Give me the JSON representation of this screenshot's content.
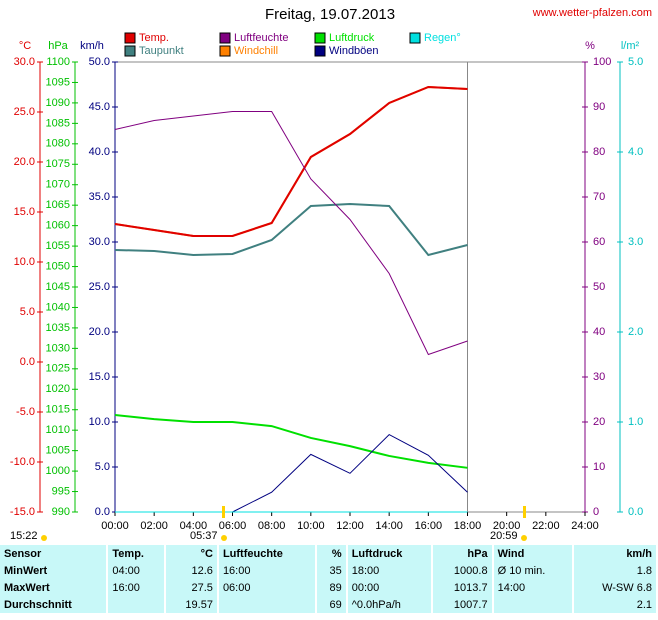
{
  "chart_data": {
    "type": "line",
    "title": "Freitag, 19.07.2013",
    "source": "www.wetter-pfalzen.com",
    "x": [
      0,
      2,
      4,
      6,
      8,
      10,
      12,
      14,
      16,
      18
    ],
    "xlim": [
      0,
      24
    ],
    "xticks": [
      {
        "value": 0,
        "label": "00:00"
      },
      {
        "value": 2,
        "label": "02:00"
      },
      {
        "value": 4,
        "label": "04:00"
      },
      {
        "value": 6,
        "label": "06:00"
      },
      {
        "value": 8,
        "label": "08:00"
      },
      {
        "value": 10,
        "label": "10:00"
      },
      {
        "value": 12,
        "label": "12:00"
      },
      {
        "value": 14,
        "label": "14:00"
      },
      {
        "value": 16,
        "label": "16:00"
      },
      {
        "value": 18,
        "label": "18:00"
      },
      {
        "value": 20,
        "label": "20:00"
      },
      {
        "value": 22,
        "label": "22:00"
      },
      {
        "value": 24,
        "label": "24:00"
      }
    ],
    "axes": {
      "c": {
        "label": "°C",
        "color": "#e00000",
        "lim": [
          -15,
          30
        ],
        "ticks": [
          {
            "value": 30,
            "label": "30.0"
          },
          {
            "value": 25,
            "label": "25.0"
          },
          {
            "value": 20,
            "label": "20.0"
          },
          {
            "value": 15,
            "label": "15.0"
          },
          {
            "value": 10,
            "label": "10.0"
          },
          {
            "value": 5,
            "label": "5.0"
          },
          {
            "value": 0,
            "label": "0.0"
          },
          {
            "value": -5,
            "label": "-5.0"
          },
          {
            "value": -10,
            "label": "-10.0"
          },
          {
            "value": -15,
            "label": "-15.0"
          }
        ]
      },
      "hpa": {
        "label": "hPa",
        "color": "#00c000",
        "lim": [
          990,
          1100
        ],
        "ticks": [
          1100,
          1095,
          1090,
          1085,
          1080,
          1075,
          1070,
          1065,
          1060,
          1055,
          1050,
          1045,
          1040,
          1035,
          1030,
          1025,
          1020,
          1015,
          1010,
          1005,
          1000,
          995,
          990
        ]
      },
      "kmh": {
        "label": "km/h",
        "color": "#000080",
        "lim": [
          0,
          50
        ],
        "ticks": [
          {
            "value": 50,
            "label": "50.0"
          },
          {
            "value": 45,
            "label": "45.0"
          },
          {
            "value": 40,
            "label": "40.0"
          },
          {
            "value": 35,
            "label": "35.0"
          },
          {
            "value": 30,
            "label": "30.0"
          },
          {
            "value": 25,
            "label": "25.0"
          },
          {
            "value": 20,
            "label": "20.0"
          },
          {
            "value": 15,
            "label": "15.0"
          },
          {
            "value": 10,
            "label": "10.0"
          },
          {
            "value": 5,
            "label": "5.0"
          },
          {
            "value": 0,
            "label": "0.0"
          }
        ]
      },
      "pct": {
        "label": "%",
        "color": "#800080",
        "lim": [
          0,
          100
        ],
        "ticks": [
          100,
          90,
          80,
          70,
          60,
          50,
          40,
          30,
          20,
          10,
          0
        ]
      },
      "rain": {
        "label": "l/m²",
        "color": "#00c0c0",
        "lim": [
          0,
          5
        ],
        "ticks": [
          {
            "value": 5,
            "label": "5.0"
          },
          {
            "value": 4,
            "label": "4.0"
          },
          {
            "value": 3,
            "label": "3.0"
          },
          {
            "value": 2,
            "label": "2.0"
          },
          {
            "value": 1,
            "label": "1.0"
          },
          {
            "value": 0,
            "label": "0.0"
          }
        ]
      }
    },
    "series": [
      {
        "name": "Windchill",
        "color": "#ff8000",
        "axis": "c",
        "values": [
          13.8,
          13.2,
          12.6,
          12.6,
          13.9,
          20.5,
          22.8,
          25.9,
          27.5,
          27.3
        ]
      },
      {
        "name": "Temp.",
        "color": "#e00000",
        "axis": "c",
        "values": [
          13.8,
          13.2,
          12.6,
          12.6,
          13.9,
          20.5,
          22.8,
          25.9,
          27.5,
          27.3
        ]
      },
      {
        "name": "Taupunkt",
        "color": "#408080",
        "axis": "c",
        "values": [
          11.2,
          11.1,
          10.7,
          10.8,
          12.2,
          15.6,
          15.8,
          15.6,
          10.7,
          11.7
        ]
      },
      {
        "name": "Luftfeuchte",
        "color": "#800080",
        "axis": "pct",
        "values": [
          85,
          87,
          88,
          89,
          89,
          74,
          65,
          53,
          35,
          38
        ]
      },
      {
        "name": "Luftdruck",
        "color": "#00e000",
        "axis": "hpa",
        "values": [
          1013.7,
          1012.7,
          1012,
          1012,
          1011,
          1008.1,
          1006.1,
          1003.7,
          1002,
          1000.8
        ]
      },
      {
        "name": "Windböen",
        "color": "#000080",
        "axis": "kmh",
        "values": [
          null,
          null,
          null,
          0,
          2.2,
          6.4,
          4.3,
          8.6,
          6.3,
          2.2
        ]
      },
      {
        "name": "Regen°",
        "color": "#00e0e0",
        "axis": "rain",
        "values": [
          0,
          0,
          0,
          0,
          0,
          0,
          0,
          0,
          0,
          0
        ]
      }
    ],
    "sun_labels": [
      "15:22",
      "05:37",
      "20:59"
    ]
  },
  "table": {
    "header": [
      "Sensor",
      "Temp.",
      "°C",
      "Luftfeuchte",
      "%",
      "Luftdruck",
      "hPa",
      "Wind",
      "km/h"
    ],
    "rows": [
      [
        "MinWert",
        "04:00",
        "12.6",
        "16:00",
        "35",
        "18:00",
        "1000.8",
        "Ø 10 min.",
        "1.8"
      ],
      [
        "MaxWert",
        "16:00",
        "27.5",
        "06:00",
        "89",
        "00:00",
        "1013.7",
        "14:00",
        "W-SW 6.8"
      ],
      [
        "Durchschnitt",
        "",
        "19.57",
        "",
        "69",
        "^0.0hPa/h",
        "1007.7",
        "",
        "2.1"
      ]
    ]
  }
}
